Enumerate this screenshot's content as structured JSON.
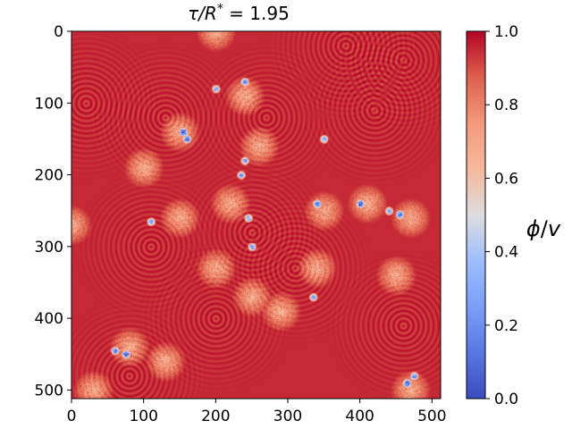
{
  "chart_data": {
    "type": "heatmap",
    "title": "τ/R* = 1.95",
    "title_parts": {
      "lhs": "τ/R",
      "sup": "*",
      "rhs": " = 1.95"
    },
    "xlim": [
      0,
      512
    ],
    "ylim": [
      512,
      0
    ],
    "x_ticks": [
      "0",
      "100",
      "200",
      "300",
      "400",
      "500"
    ],
    "y_ticks": [
      "0",
      "100",
      "200",
      "300",
      "400",
      "500"
    ],
    "x_tick_values": [
      0,
      100,
      200,
      300,
      400,
      500
    ],
    "y_tick_values": [
      0,
      100,
      200,
      300,
      400,
      500
    ],
    "colorbar": {
      "label": "ϕ/v",
      "label_parts": {
        "phi": "ϕ",
        "slash": "/",
        "v": "v"
      },
      "colormap": "coolwarm",
      "range": [
        0.0,
        1.0
      ],
      "ticks": [
        "0.0",
        "0.2",
        "0.4",
        "0.6",
        "0.8",
        "1.0"
      ],
      "tick_values": [
        0.0,
        0.2,
        0.4,
        0.6,
        0.8,
        1.0
      ]
    },
    "field_description_values": {
      "background_level": 0.95,
      "bubble_centers": [
        [
          20,
          100
        ],
        [
          130,
          120
        ],
        [
          270,
          120
        ],
        [
          420,
          110
        ],
        [
          310,
          330
        ],
        [
          460,
          410
        ],
        [
          80,
          480
        ],
        [
          200,
          400
        ],
        [
          110,
          300
        ],
        [
          250,
          280
        ],
        [
          380,
          20
        ],
        [
          460,
          40
        ]
      ],
      "wall_points": [
        [
          200,
          0
        ],
        [
          240,
          90
        ],
        [
          260,
          160
        ],
        [
          220,
          240
        ],
        [
          200,
          330
        ],
        [
          250,
          370
        ],
        [
          290,
          390
        ],
        [
          340,
          330
        ],
        [
          350,
          250
        ],
        [
          410,
          240
        ],
        [
          470,
          260
        ],
        [
          450,
          340
        ],
        [
          470,
          500
        ],
        [
          150,
          140
        ],
        [
          100,
          190
        ],
        [
          0,
          270
        ],
        [
          150,
          260
        ],
        [
          80,
          440
        ],
        [
          130,
          460
        ],
        [
          30,
          500
        ]
      ],
      "low_spots": [
        [
          155,
          140
        ],
        [
          160,
          150
        ],
        [
          235,
          200
        ],
        [
          245,
          260
        ],
        [
          340,
          240
        ],
        [
          400,
          240
        ],
        [
          440,
          250
        ],
        [
          455,
          255
        ],
        [
          350,
          150
        ],
        [
          240,
          180
        ],
        [
          250,
          300
        ],
        [
          335,
          370
        ],
        [
          75,
          450
        ],
        [
          60,
          445
        ],
        [
          465,
          490
        ],
        [
          475,
          480
        ],
        [
          110,
          265
        ],
        [
          240,
          70
        ],
        [
          200,
          80
        ]
      ]
    }
  }
}
